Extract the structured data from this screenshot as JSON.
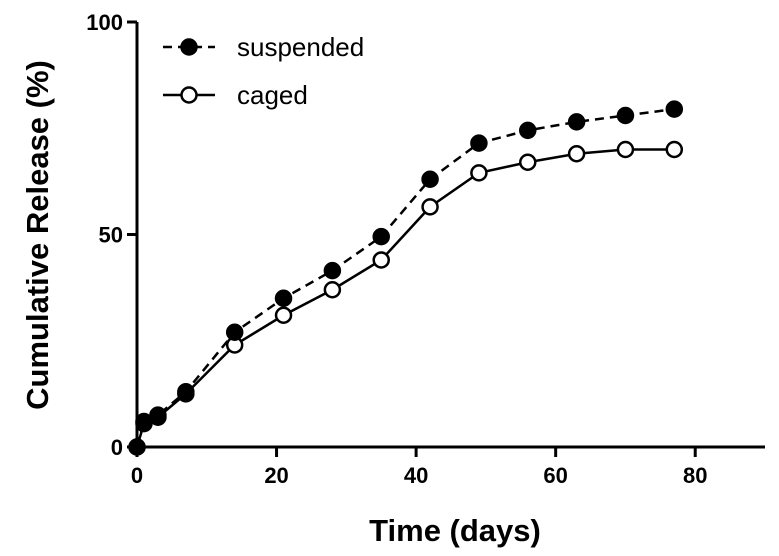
{
  "chart_data": {
    "type": "line",
    "title": "",
    "xlabel": "Time (days)",
    "ylabel": "Cumulative Release (%)",
    "xlim": [
      0,
      90
    ],
    "ylim": [
      0,
      100
    ],
    "x_ticks": [
      0,
      20,
      40,
      60,
      80
    ],
    "y_ticks": [
      0,
      50,
      100
    ],
    "grid": false,
    "legend_position": "top-left",
    "series": [
      {
        "name": "suspended",
        "marker": "filled-circle",
        "line_style": "dashed",
        "color": "#000000",
        "points": [
          [
            0,
            0
          ],
          [
            1,
            6
          ],
          [
            3,
            7.5
          ],
          [
            7,
            13
          ],
          [
            14,
            27
          ],
          [
            21,
            35
          ],
          [
            28,
            41.5
          ],
          [
            35,
            49.5
          ],
          [
            42,
            63
          ],
          [
            49,
            71.5
          ],
          [
            56,
            74.5
          ],
          [
            63,
            76.5
          ],
          [
            70,
            78
          ],
          [
            77,
            79.5
          ]
        ]
      },
      {
        "name": "caged",
        "marker": "open-circle",
        "line_style": "solid",
        "color": "#000000",
        "points": [
          [
            0,
            0
          ],
          [
            1,
            5.5
          ],
          [
            3,
            7
          ],
          [
            7,
            12.5
          ],
          [
            14,
            24
          ],
          [
            21,
            31
          ],
          [
            28,
            37
          ],
          [
            35,
            44
          ],
          [
            42,
            56.5
          ],
          [
            49,
            64.5
          ],
          [
            56,
            67
          ],
          [
            63,
            69
          ],
          [
            70,
            70
          ],
          [
            77,
            70
          ]
        ]
      }
    ]
  }
}
